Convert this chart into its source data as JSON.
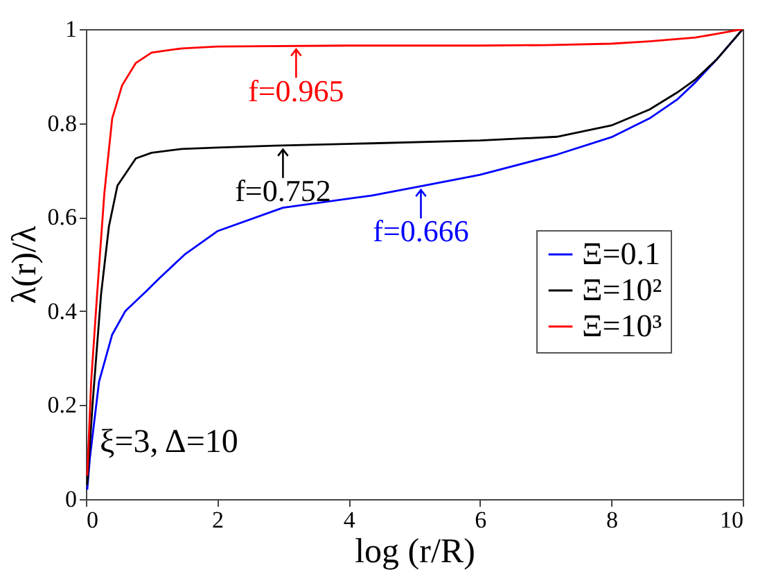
{
  "chart_data": {
    "type": "line",
    "xlabel": "log (r/R)",
    "ylabel": "λ(r)/λ",
    "xlim": [
      0,
      10
    ],
    "xticks": [
      0,
      2,
      4,
      6,
      8,
      10
    ],
    "ylim": [
      0,
      1
    ],
    "yticks": [
      0,
      0.2,
      0.4,
      0.6,
      0.8,
      1
    ],
    "legend": "right",
    "series": [
      {
        "name": "Ξ=0.1",
        "color": "#0000ff",
        "x": [
          0.02,
          0.06,
          0.2,
          0.4,
          0.6,
          0.9,
          1.12,
          1.5,
          2,
          3,
          4.35,
          5.14,
          6,
          7.17,
          8,
          8.58,
          9,
          9.28,
          9.6,
          10
        ],
        "values": [
          0.02,
          0.087,
          0.25,
          0.35,
          0.4,
          0.44,
          0.47,
          0.52,
          0.57,
          0.62,
          0.646,
          0.667,
          0.69,
          0.733,
          0.77,
          0.81,
          0.85,
          0.887,
          0.935,
          1
        ]
      },
      {
        "name": "Ξ=10²",
        "color": "#000000",
        "x": [
          0.02,
          0.1,
          0.23,
          0.35,
          0.48,
          0.76,
          1,
          1.46,
          2,
          2.87,
          4.35,
          6,
          7.17,
          8,
          8.58,
          9,
          9.28,
          9.6,
          10
        ],
        "values": [
          0.03,
          0.2,
          0.435,
          0.58,
          0.667,
          0.725,
          0.737,
          0.745,
          0.748,
          0.752,
          0.757,
          0.763,
          0.771,
          0.795,
          0.829,
          0.865,
          0.893,
          0.935,
          1
        ]
      },
      {
        "name": "Ξ=10³",
        "color": "#ff0000",
        "x": [
          0.02,
          0.08,
          0.17,
          0.28,
          0.4,
          0.55,
          0.76,
          1,
          1.46,
          2,
          4,
          6,
          7,
          8,
          8.58,
          9.28,
          9.6,
          10
        ],
        "values": [
          0.05,
          0.25,
          0.435,
          0.65,
          0.81,
          0.88,
          0.928,
          0.95,
          0.959,
          0.963,
          0.965,
          0.965,
          0.966,
          0.969,
          0.974,
          0.982,
          0.99,
          1
        ]
      }
    ],
    "annotations": [
      {
        "text": "f=0.965",
        "x": 3.2,
        "y": 0.965
      },
      {
        "text": "f=0.752",
        "x": 3,
        "y": 0.752
      },
      {
        "text": "f=0.666",
        "x": 5.1,
        "y": 0.666
      },
      "ξ=3, Δ=10"
    ]
  }
}
